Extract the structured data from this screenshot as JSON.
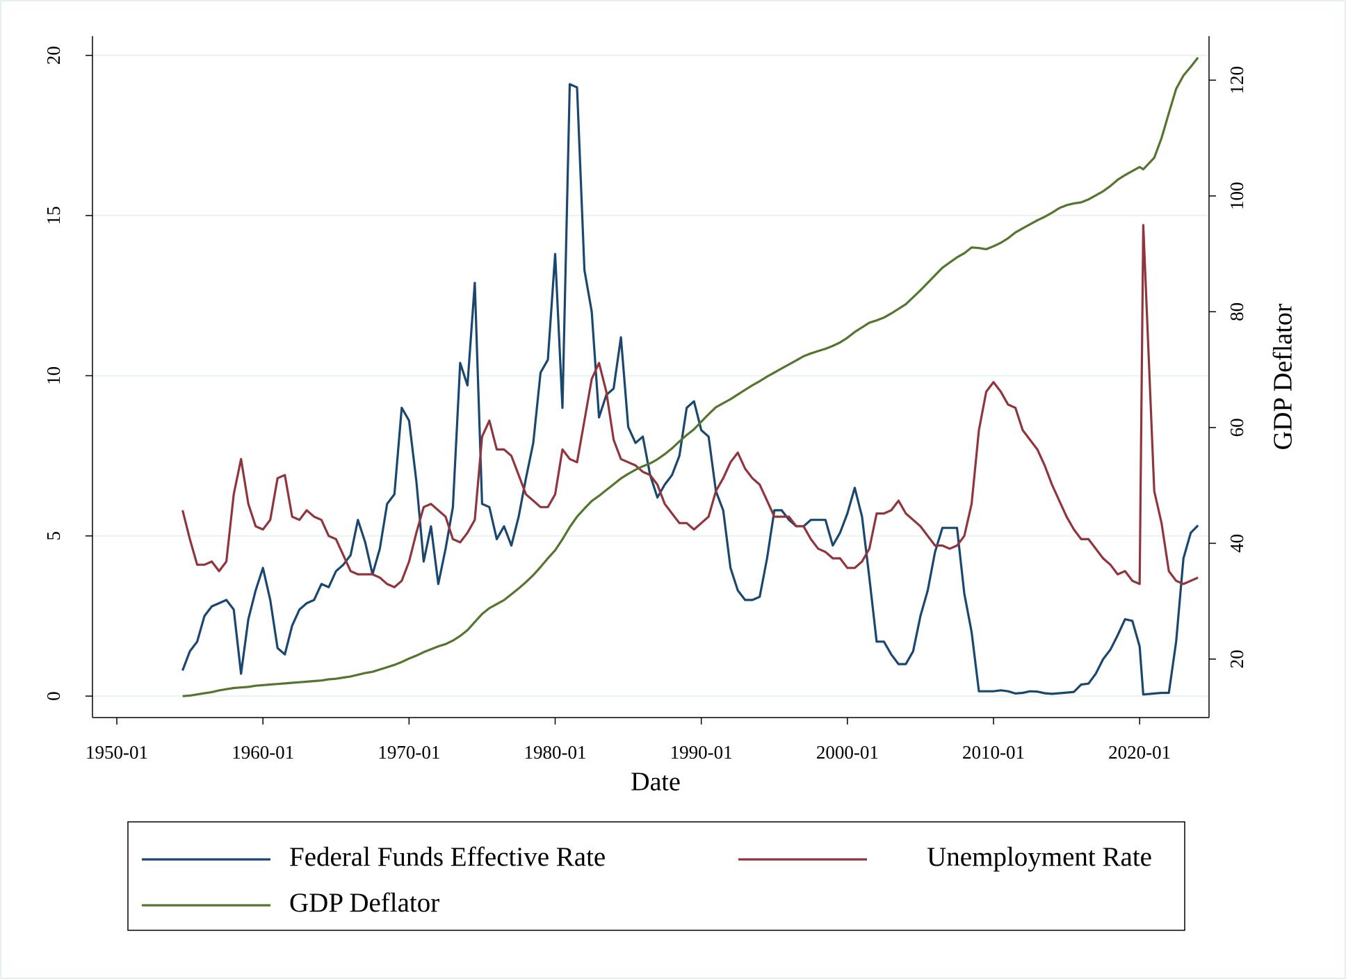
{
  "chart_data": {
    "type": "line",
    "x_label": "Date",
    "y2_label": "GDP Deflator",
    "x": [
      "1954-07",
      "1955-01",
      "1955-07",
      "1956-01",
      "1956-07",
      "1957-01",
      "1957-07",
      "1958-01",
      "1958-07",
      "1959-01",
      "1959-07",
      "1960-01",
      "1960-07",
      "1961-01",
      "1961-07",
      "1962-01",
      "1962-07",
      "1963-01",
      "1963-07",
      "1964-01",
      "1964-07",
      "1965-01",
      "1965-07",
      "1966-01",
      "1966-07",
      "1967-01",
      "1967-07",
      "1968-01",
      "1968-07",
      "1969-01",
      "1969-07",
      "1970-01",
      "1970-07",
      "1971-01",
      "1971-07",
      "1972-01",
      "1972-07",
      "1973-01",
      "1973-07",
      "1974-01",
      "1974-07",
      "1975-01",
      "1975-07",
      "1976-01",
      "1976-07",
      "1977-01",
      "1977-07",
      "1978-01",
      "1978-07",
      "1979-01",
      "1979-07",
      "1980-01",
      "1980-07",
      "1981-01",
      "1981-07",
      "1982-01",
      "1982-07",
      "1983-01",
      "1983-07",
      "1984-01",
      "1984-07",
      "1985-01",
      "1985-07",
      "1986-01",
      "1986-07",
      "1987-01",
      "1987-07",
      "1988-01",
      "1988-07",
      "1989-01",
      "1989-07",
      "1990-01",
      "1990-07",
      "1991-01",
      "1991-07",
      "1992-01",
      "1992-07",
      "1993-01",
      "1993-07",
      "1994-01",
      "1994-07",
      "1995-01",
      "1995-07",
      "1996-01",
      "1996-07",
      "1997-01",
      "1997-07",
      "1998-01",
      "1998-07",
      "1999-01",
      "1999-07",
      "2000-01",
      "2000-07",
      "2001-01",
      "2001-07",
      "2002-01",
      "2002-07",
      "2003-01",
      "2003-07",
      "2004-01",
      "2004-07",
      "2005-01",
      "2005-07",
      "2006-01",
      "2006-07",
      "2007-01",
      "2007-07",
      "2008-01",
      "2008-07",
      "2009-01",
      "2009-07",
      "2010-01",
      "2010-07",
      "2011-01",
      "2011-07",
      "2012-01",
      "2012-07",
      "2013-01",
      "2013-07",
      "2014-01",
      "2014-07",
      "2015-01",
      "2015-07",
      "2016-01",
      "2016-07",
      "2017-01",
      "2017-07",
      "2018-01",
      "2018-07",
      "2019-01",
      "2019-07",
      "2020-01",
      "2020-04",
      "2021-01",
      "2021-07",
      "2022-01",
      "2022-07",
      "2023-01",
      "2023-07",
      "2024-01"
    ],
    "series": [
      {
        "name": "Federal Funds Effective Rate",
        "color": "#1a476f",
        "values": [
          0.8,
          1.4,
          1.7,
          2.5,
          2.8,
          2.9,
          3.0,
          2.7,
          0.7,
          2.4,
          3.3,
          4.0,
          3.0,
          1.5,
          1.3,
          2.2,
          2.7,
          2.9,
          3.0,
          3.5,
          3.4,
          3.9,
          4.1,
          4.4,
          5.5,
          4.8,
          3.8,
          4.6,
          6.0,
          6.3,
          9.0,
          8.6,
          6.7,
          4.2,
          5.3,
          3.5,
          4.6,
          5.9,
          10.4,
          9.7,
          12.9,
          6.0,
          5.9,
          4.9,
          5.3,
          4.7,
          5.6,
          6.8,
          7.9,
          10.1,
          10.5,
          13.8,
          9.0,
          19.1,
          19.0,
          13.3,
          12.0,
          8.7,
          9.4,
          9.6,
          11.2,
          8.4,
          7.9,
          8.1,
          6.9,
          6.2,
          6.6,
          6.9,
          7.5,
          9.0,
          9.2,
          8.3,
          8.1,
          6.4,
          5.8,
          4.0,
          3.3,
          3.0,
          3.0,
          3.1,
          4.3,
          5.8,
          5.8,
          5.5,
          5.3,
          5.3,
          5.5,
          5.5,
          5.5,
          4.7,
          5.1,
          5.7,
          6.5,
          5.6,
          3.7,
          1.7,
          1.7,
          1.3,
          1.0,
          1.0,
          1.4,
          2.5,
          3.3,
          4.5,
          5.25,
          5.25,
          5.25,
          3.2,
          2.0,
          0.15,
          0.15,
          0.15,
          0.18,
          0.15,
          0.08,
          0.1,
          0.15,
          0.14,
          0.09,
          0.07,
          0.09,
          0.11,
          0.13,
          0.36,
          0.39,
          0.7,
          1.15,
          1.45,
          1.9,
          2.4,
          2.35,
          1.55,
          0.05,
          0.08,
          0.1,
          0.1,
          1.7,
          4.3,
          5.1,
          5.33
        ]
      },
      {
        "name": "Unemployment Rate",
        "color": "#90353b",
        "values": [
          5.8,
          4.9,
          4.1,
          4.1,
          4.2,
          3.9,
          4.2,
          6.3,
          7.4,
          6.0,
          5.3,
          5.2,
          5.5,
          6.8,
          6.9,
          5.6,
          5.5,
          5.8,
          5.6,
          5.5,
          5.0,
          4.9,
          4.4,
          3.9,
          3.8,
          3.8,
          3.8,
          3.7,
          3.5,
          3.4,
          3.6,
          4.2,
          5.1,
          5.9,
          6.0,
          5.8,
          5.6,
          4.9,
          4.8,
          5.1,
          5.5,
          8.1,
          8.6,
          7.7,
          7.7,
          7.5,
          6.9,
          6.3,
          6.1,
          5.9,
          5.9,
          6.3,
          7.7,
          7.4,
          7.3,
          8.6,
          9.9,
          10.4,
          9.5,
          8.0,
          7.4,
          7.3,
          7.2,
          7.0,
          6.9,
          6.6,
          6.0,
          5.7,
          5.4,
          5.4,
          5.2,
          5.4,
          5.6,
          6.4,
          6.8,
          7.3,
          7.6,
          7.1,
          6.8,
          6.6,
          6.1,
          5.6,
          5.6,
          5.6,
          5.3,
          5.3,
          4.9,
          4.6,
          4.5,
          4.3,
          4.3,
          4.0,
          4.0,
          4.2,
          4.6,
          5.7,
          5.7,
          5.8,
          6.1,
          5.7,
          5.5,
          5.3,
          5.0,
          4.7,
          4.7,
          4.6,
          4.7,
          5.0,
          6.0,
          8.3,
          9.5,
          9.8,
          9.5,
          9.1,
          9.0,
          8.3,
          8.0,
          7.7,
          7.2,
          6.6,
          6.1,
          5.6,
          5.2,
          4.9,
          4.9,
          4.6,
          4.3,
          4.1,
          3.8,
          3.9,
          3.6,
          3.5,
          14.7,
          6.4,
          5.4,
          3.9,
          3.6,
          3.5,
          3.6,
          3.7
        ]
      },
      {
        "name": "GDP Deflator",
        "color": "#55752f",
        "axis": "y2",
        "values": [
          13.6,
          13.7,
          13.9,
          14.1,
          14.3,
          14.6,
          14.8,
          15.0,
          15.1,
          15.2,
          15.4,
          15.5,
          15.6,
          15.7,
          15.8,
          15.9,
          16.0,
          16.1,
          16.2,
          16.3,
          16.5,
          16.6,
          16.8,
          17.0,
          17.3,
          17.6,
          17.8,
          18.2,
          18.6,
          19.0,
          19.5,
          20.1,
          20.6,
          21.2,
          21.7,
          22.2,
          22.6,
          23.2,
          24.0,
          25.0,
          26.4,
          27.8,
          28.8,
          29.5,
          30.2,
          31.2,
          32.2,
          33.3,
          34.5,
          35.9,
          37.4,
          38.8,
          40.7,
          42.8,
          44.6,
          46.0,
          47.3,
          48.2,
          49.2,
          50.2,
          51.2,
          52.0,
          52.7,
          53.3,
          53.8,
          54.5,
          55.4,
          56.4,
          57.6,
          58.7,
          59.7,
          61.0,
          62.3,
          63.5,
          64.2,
          64.9,
          65.7,
          66.5,
          67.3,
          68.0,
          68.8,
          69.5,
          70.2,
          70.9,
          71.6,
          72.3,
          72.8,
          73.2,
          73.6,
          74.1,
          74.7,
          75.5,
          76.5,
          77.3,
          78.1,
          78.5,
          79.0,
          79.7,
          80.5,
          81.3,
          82.5,
          83.7,
          85.0,
          86.3,
          87.6,
          88.5,
          89.4,
          90.1,
          91.1,
          91.0,
          90.8,
          91.3,
          91.9,
          92.7,
          93.7,
          94.4,
          95.1,
          95.8,
          96.4,
          97.1,
          97.9,
          98.4,
          98.7,
          98.9,
          99.4,
          100.1,
          100.8,
          101.7,
          102.8,
          103.6,
          104.3,
          105.0,
          104.6,
          106.6,
          110.0,
          114.3,
          118.5,
          120.8,
          122.3,
          123.9
        ]
      }
    ],
    "xlim": [
      "1948-05",
      "2024-10"
    ],
    "xticks": [
      "1950-01",
      "1960-01",
      "1970-01",
      "1980-01",
      "1990-01",
      "2000-01",
      "2010-01",
      "2020-01"
    ],
    "ylim": [
      -0.67,
      20.6
    ],
    "yticks": [
      0,
      5,
      10,
      15,
      20
    ],
    "y2lim": [
      9.9,
      127.6
    ],
    "y2ticks": [
      20,
      40,
      60,
      80,
      100,
      120
    ],
    "grid": true,
    "legend": "bottom"
  }
}
